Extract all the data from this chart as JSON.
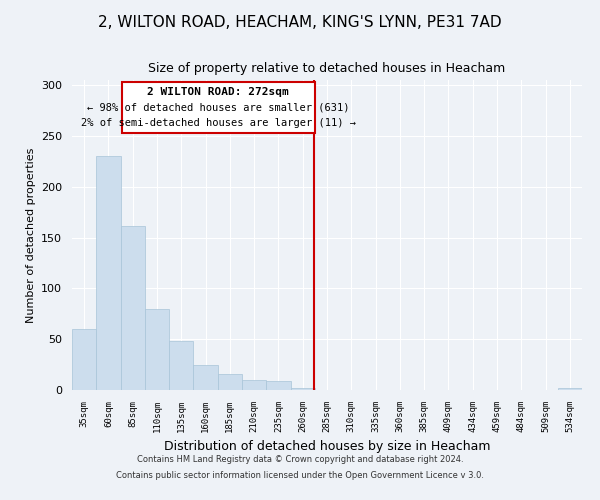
{
  "title": "2, WILTON ROAD, HEACHAM, KING'S LYNN, PE31 7AD",
  "subtitle": "Size of property relative to detached houses in Heacham",
  "xlabel": "Distribution of detached houses by size in Heacham",
  "ylabel": "Number of detached properties",
  "bar_labels": [
    "35sqm",
    "60sqm",
    "85sqm",
    "110sqm",
    "135sqm",
    "160sqm",
    "185sqm",
    "210sqm",
    "235sqm",
    "260sqm",
    "285sqm",
    "310sqm",
    "335sqm",
    "360sqm",
    "385sqm",
    "409sqm",
    "434sqm",
    "459sqm",
    "484sqm",
    "509sqm",
    "534sqm"
  ],
  "bar_heights": [
    60,
    230,
    161,
    80,
    48,
    25,
    16,
    10,
    9,
    2,
    0,
    0,
    0,
    0,
    0,
    0,
    0,
    0,
    0,
    0,
    2
  ],
  "bar_color": "#ccdded",
  "bar_edge_color": "#a8c4d8",
  "property_line_label": "2 WILTON ROAD: 272sqm",
  "annotation_line1": "← 98% of detached houses are smaller (631)",
  "annotation_line2": "2% of semi-detached houses are larger (11) →",
  "vline_color": "#cc0000",
  "ylim": [
    0,
    305
  ],
  "yticks": [
    0,
    50,
    100,
    150,
    200,
    250,
    300
  ],
  "footer1": "Contains HM Land Registry data © Crown copyright and database right 2024.",
  "footer2": "Contains public sector information licensed under the Open Government Licence v 3.0.",
  "bg_color": "#eef2f7",
  "plot_bg_color": "#eef2f7"
}
